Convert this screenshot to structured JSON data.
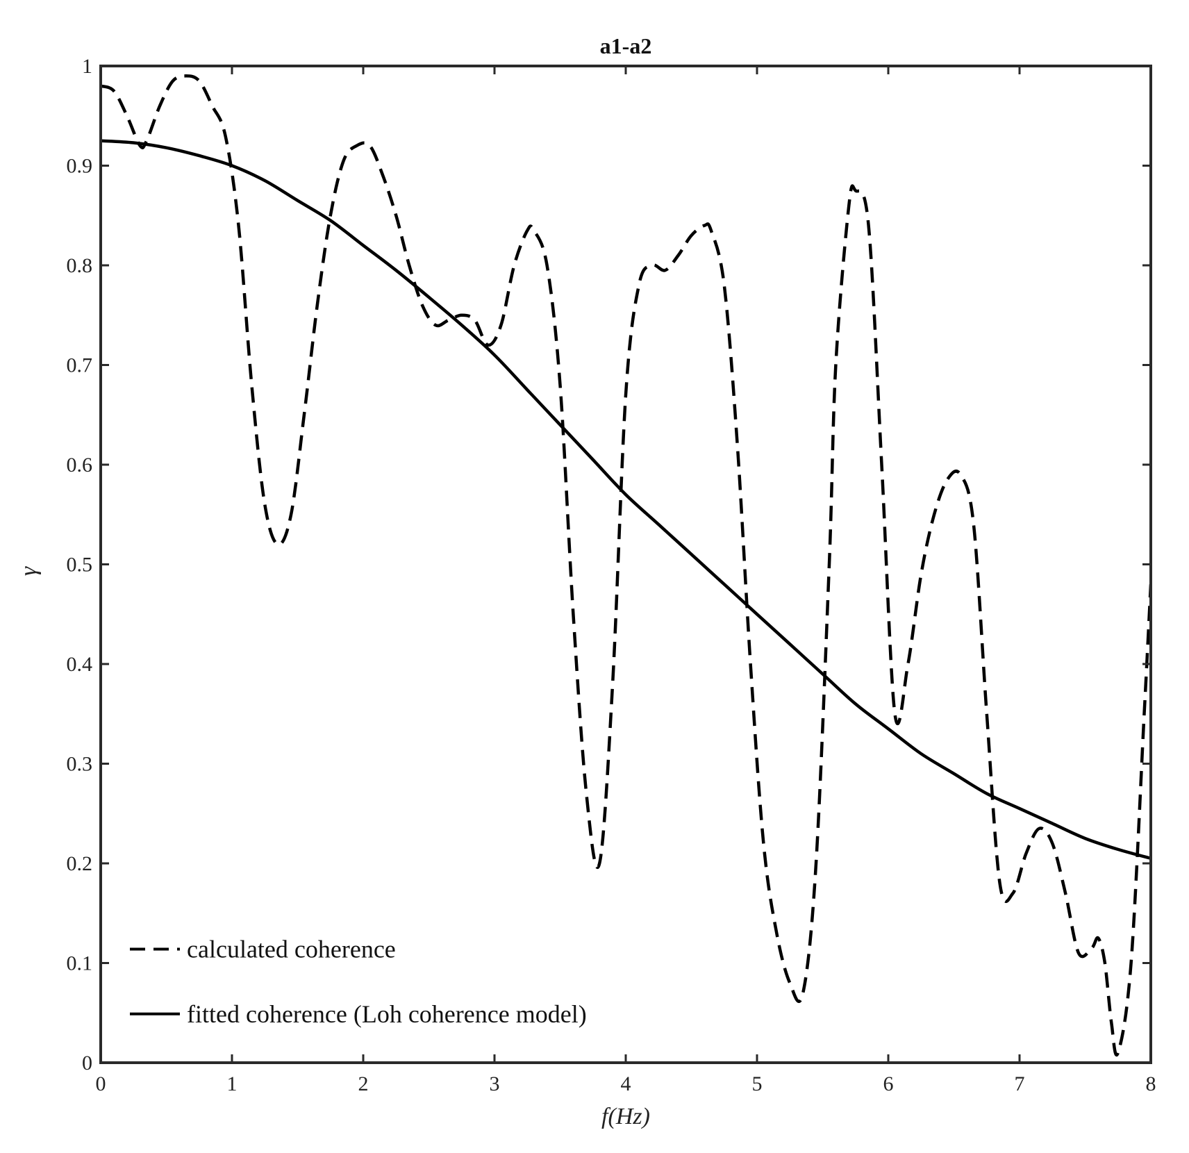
{
  "chart_data": {
    "type": "line",
    "title": "a1-a2",
    "xlabel": "f(Hz)",
    "ylabel": "γ",
    "xlim": [
      0,
      8
    ],
    "ylim": [
      0,
      1
    ],
    "xticks": [
      0,
      1,
      2,
      3,
      4,
      5,
      6,
      7,
      8
    ],
    "yticks": [
      0,
      0.1,
      0.2,
      0.3,
      0.4,
      0.5,
      0.6,
      0.7,
      0.8,
      0.9,
      1
    ],
    "xtick_labels": [
      "0",
      "1",
      "2",
      "3",
      "4",
      "5",
      "6",
      "7",
      "8"
    ],
    "ytick_labels": [
      "0",
      "0.1",
      "0.2",
      "0.3",
      "0.4",
      "0.5",
      "0.6",
      "0.7",
      "0.8",
      "0.9",
      "1"
    ],
    "grid": false,
    "legend_position": "bottom-left",
    "series": [
      {
        "name": "calculated coherence",
        "style": "dashed",
        "color": "#000000",
        "x": [
          0,
          0.1,
          0.2,
          0.3,
          0.35,
          0.45,
          0.55,
          0.65,
          0.75,
          0.85,
          0.95,
          1.05,
          1.15,
          1.25,
          1.35,
          1.45,
          1.55,
          1.65,
          1.75,
          1.85,
          1.95,
          2.05,
          2.15,
          2.25,
          2.35,
          2.45,
          2.55,
          2.65,
          2.75,
          2.85,
          2.95,
          3.05,
          3.15,
          3.25,
          3.3,
          3.4,
          3.5,
          3.6,
          3.7,
          3.8,
          3.9,
          4.0,
          4.1,
          4.2,
          4.3,
          4.4,
          4.5,
          4.6,
          4.65,
          4.75,
          4.85,
          4.95,
          5.05,
          5.15,
          5.25,
          5.35,
          5.45,
          5.55,
          5.6,
          5.7,
          5.75,
          5.85,
          5.95,
          6.05,
          6.15,
          6.25,
          6.35,
          6.45,
          6.55,
          6.65,
          6.75,
          6.85,
          6.95,
          7.05,
          7.15,
          7.25,
          7.35,
          7.45,
          7.55,
          7.6,
          7.65,
          7.7,
          7.75,
          7.85,
          7.95,
          8.0
        ],
        "y": [
          0.98,
          0.975,
          0.95,
          0.92,
          0.925,
          0.96,
          0.985,
          0.99,
          0.985,
          0.96,
          0.93,
          0.84,
          0.68,
          0.56,
          0.52,
          0.55,
          0.65,
          0.76,
          0.85,
          0.905,
          0.92,
          0.92,
          0.89,
          0.85,
          0.8,
          0.76,
          0.74,
          0.745,
          0.75,
          0.745,
          0.72,
          0.74,
          0.8,
          0.835,
          0.835,
          0.8,
          0.68,
          0.45,
          0.27,
          0.2,
          0.38,
          0.67,
          0.78,
          0.8,
          0.795,
          0.81,
          0.83,
          0.84,
          0.835,
          0.78,
          0.62,
          0.4,
          0.22,
          0.13,
          0.08,
          0.07,
          0.2,
          0.5,
          0.7,
          0.86,
          0.875,
          0.84,
          0.6,
          0.35,
          0.4,
          0.49,
          0.55,
          0.585,
          0.59,
          0.54,
          0.35,
          0.18,
          0.17,
          0.21,
          0.235,
          0.22,
          0.17,
          0.11,
          0.115,
          0.125,
          0.1,
          0.04,
          0.01,
          0.1,
          0.35,
          0.48
        ]
      },
      {
        "name": "fitted coherence (Loh coherence model)",
        "style": "solid",
        "color": "#000000",
        "x": [
          0,
          0.25,
          0.5,
          0.75,
          1.0,
          1.25,
          1.5,
          1.75,
          2.0,
          2.25,
          2.5,
          2.75,
          3.0,
          3.25,
          3.5,
          3.75,
          4.0,
          4.25,
          4.5,
          4.75,
          5.0,
          5.25,
          5.5,
          5.75,
          6.0,
          6.25,
          6.5,
          6.75,
          7.0,
          7.25,
          7.5,
          7.75,
          8.0
        ],
        "y": [
          0.925,
          0.923,
          0.918,
          0.91,
          0.9,
          0.885,
          0.865,
          0.845,
          0.82,
          0.795,
          0.768,
          0.74,
          0.71,
          0.675,
          0.64,
          0.605,
          0.57,
          0.54,
          0.51,
          0.48,
          0.45,
          0.42,
          0.39,
          0.36,
          0.335,
          0.31,
          0.29,
          0.27,
          0.255,
          0.24,
          0.225,
          0.214,
          0.205
        ]
      }
    ]
  }
}
